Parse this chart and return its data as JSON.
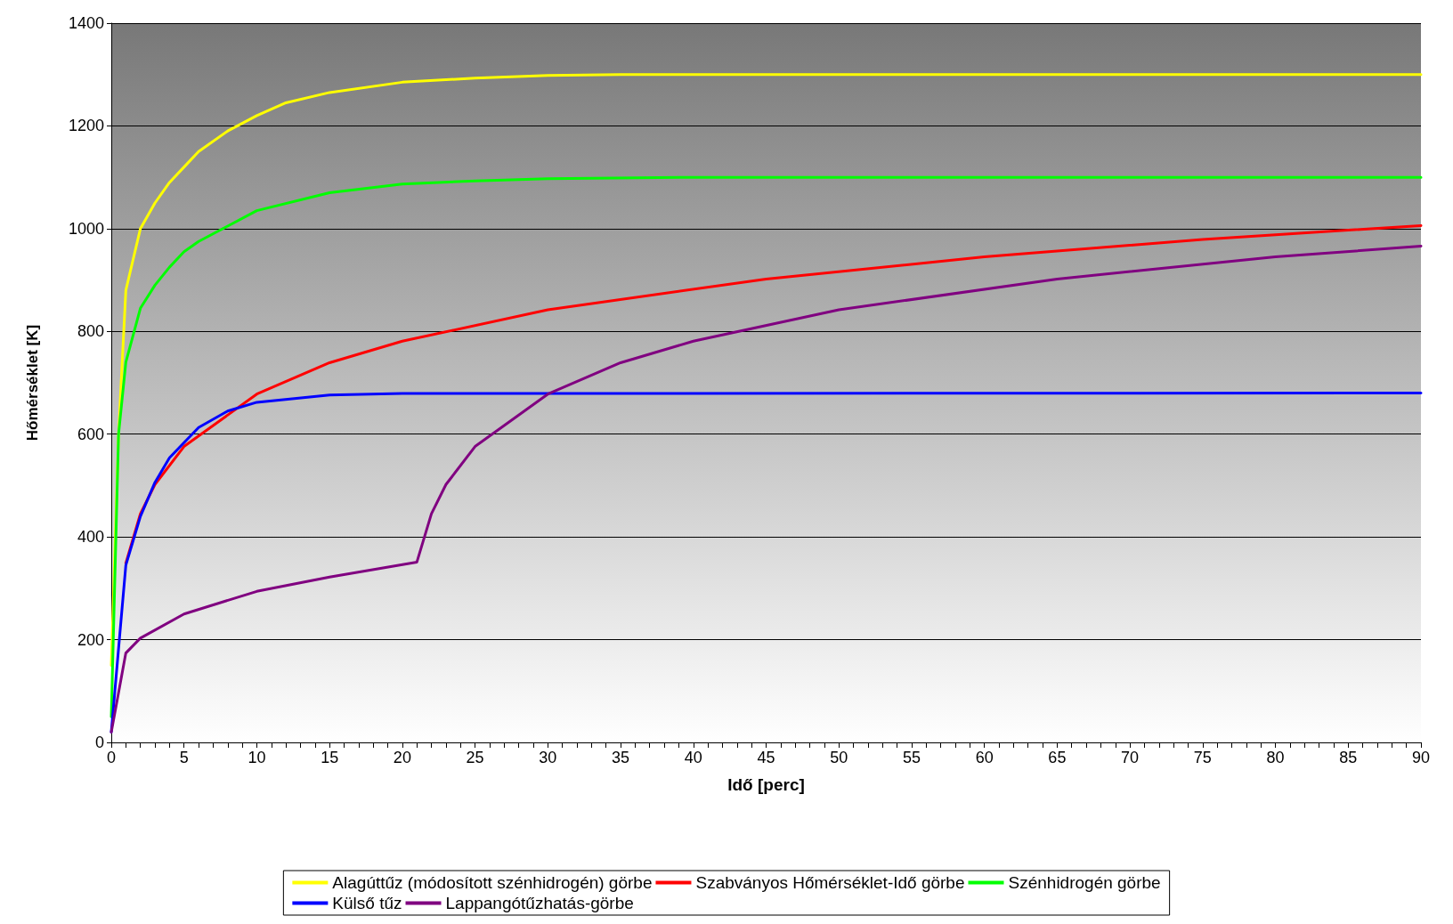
{
  "chart_data": {
    "type": "line",
    "xlabel": "Idő [perc]",
    "ylabel": "Hőmérséklet [K]",
    "xlim": [
      0,
      90
    ],
    "xticks": [
      0,
      {
        "value": 1,
        "label": null
      },
      {
        "value": 2,
        "label": null
      },
      {
        "value": 3,
        "label": null
      },
      {
        "value": 4,
        "label": null
      },
      5,
      {
        "value": 6,
        "label": null
      },
      {
        "value": 7,
        "label": null
      },
      {
        "value": 8,
        "label": null
      },
      {
        "value": 9,
        "label": null
      },
      10,
      {
        "value": 11,
        "label": null
      },
      {
        "value": 12,
        "label": null
      },
      {
        "value": 13,
        "label": null
      },
      {
        "value": 14,
        "label": null
      },
      15,
      {
        "value": 16,
        "label": null
      },
      {
        "value": 17,
        "label": null
      },
      {
        "value": 18,
        "label": null
      },
      {
        "value": 19,
        "label": null
      },
      20,
      {
        "value": 21,
        "label": null
      },
      {
        "value": 22,
        "label": null
      },
      {
        "value": 23,
        "label": null
      },
      {
        "value": 24,
        "label": null
      },
      25,
      {
        "value": 26,
        "label": null
      },
      {
        "value": 27,
        "label": null
      },
      {
        "value": 28,
        "label": null
      },
      {
        "value": 29,
        "label": null
      },
      30,
      {
        "value": 31,
        "label": null
      },
      {
        "value": 32,
        "label": null
      },
      {
        "value": 33,
        "label": null
      },
      {
        "value": 34,
        "label": null
      },
      35,
      {
        "value": 36,
        "label": null
      },
      {
        "value": 37,
        "label": null
      },
      {
        "value": 38,
        "label": null
      },
      {
        "value": 39,
        "label": null
      },
      40,
      {
        "value": 41,
        "label": null
      },
      {
        "value": 42,
        "label": null
      },
      {
        "value": 43,
        "label": null
      },
      {
        "value": 44,
        "label": null
      },
      45,
      {
        "value": 46,
        "label": null
      },
      {
        "value": 47,
        "label": null
      },
      {
        "value": 48,
        "label": null
      },
      {
        "value": 49,
        "label": null
      },
      50,
      {
        "value": 51,
        "label": null
      },
      {
        "value": 52,
        "label": null
      },
      {
        "value": 53,
        "label": null
      },
      {
        "value": 54,
        "label": null
      },
      55,
      {
        "value": 56,
        "label": null
      },
      {
        "value": 57,
        "label": null
      },
      {
        "value": 58,
        "label": null
      },
      {
        "value": 59,
        "label": null
      },
      60,
      {
        "value": 61,
        "label": null
      },
      {
        "value": 62,
        "label": null
      },
      {
        "value": 63,
        "label": null
      },
      {
        "value": 64,
        "label": null
      },
      65,
      {
        "value": 66,
        "label": null
      },
      {
        "value": 67,
        "label": null
      },
      {
        "value": 68,
        "label": null
      },
      {
        "value": 69,
        "label": null
      },
      70,
      {
        "value": 71,
        "label": null
      },
      {
        "value": 72,
        "label": null
      },
      {
        "value": 73,
        "label": null
      },
      {
        "value": 74,
        "label": null
      },
      75,
      {
        "value": 76,
        "label": null
      },
      {
        "value": 77,
        "label": null
      },
      {
        "value": 78,
        "label": null
      },
      {
        "value": 79,
        "label": null
      },
      80,
      {
        "value": 81,
        "label": null
      },
      {
        "value": 82,
        "label": null
      },
      {
        "value": 83,
        "label": null
      },
      {
        "value": 84,
        "label": null
      },
      85,
      {
        "value": 86,
        "label": null
      },
      {
        "value": 87,
        "label": null
      },
      {
        "value": 88,
        "label": null
      },
      {
        "value": 89,
        "label": null
      },
      90
    ],
    "ylim": [
      0,
      1400
    ],
    "yticks": [
      0,
      200,
      400,
      600,
      800,
      1000,
      1200,
      1400
    ],
    "grid": "y",
    "legend": "bottom",
    "marker": "none",
    "line_style": "solid",
    "series": [
      {
        "name": "Alagúttűz (módosított szénhidrogén) görbe",
        "color": "#ffff00",
        "x": [
          0,
          0.5,
          1,
          2,
          3,
          4,
          5,
          6,
          8,
          10,
          12,
          15,
          20,
          25,
          30,
          35,
          40,
          90
        ],
        "values": [
          150,
          600,
          880,
          1000,
          1050,
          1090,
          1120,
          1150,
          1190,
          1220,
          1245,
          1265,
          1285,
          1293,
          1298,
          1300,
          1300,
          1300
        ]
      },
      {
        "name": "Szabványos Hőmérséklet-Idő görbe",
        "color": "#ff0000",
        "x": [
          1,
          2,
          3,
          5,
          10,
          15,
          20,
          30,
          45,
          60,
          75,
          90
        ],
        "values": [
          349,
          445,
          502,
          576,
          678,
          739,
          781,
          842,
          902,
          945,
          979,
          1006
        ]
      },
      {
        "name": "Szénhidrogén görbe",
        "color": "#00ff00",
        "x": [
          0,
          0.5,
          1,
          2,
          3,
          4,
          5,
          6,
          8,
          10,
          15,
          20,
          25,
          30,
          40,
          90
        ],
        "values": [
          50,
          600,
          740,
          845,
          890,
          925,
          955,
          975,
          1005,
          1035,
          1070,
          1087,
          1093,
          1097,
          1100,
          1100
        ]
      },
      {
        "name": "Külső tűz",
        "color": "#0000ff",
        "x": [
          0,
          1,
          2,
          3,
          4,
          6,
          8,
          10,
          15,
          20,
          90
        ],
        "values": [
          20,
          345,
          440,
          506,
          554,
          613,
          645,
          662,
          676,
          679,
          680
        ]
      },
      {
        "name": "Lappangótűzhatás-görbe",
        "color": "#800080",
        "x": [
          0,
          1,
          2,
          5,
          10,
          15,
          21,
          22,
          23,
          25,
          30,
          35,
          40,
          50,
          65,
          80,
          90
        ],
        "values": [
          20,
          174,
          203,
          250,
          294,
          322,
          351,
          445,
          502,
          576,
          678,
          739,
          781,
          842,
          902,
          945,
          966
        ]
      }
    ]
  }
}
